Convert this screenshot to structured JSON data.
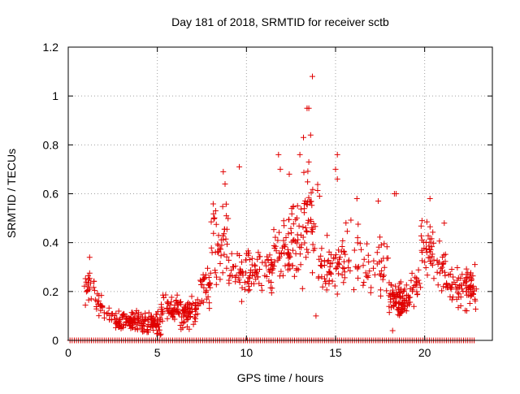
{
  "chart_data": {
    "type": "scatter",
    "title": "Day 181 of 2018, SRMTID for receiver sctb",
    "xlabel": "GPS time / hours",
    "ylabel": "SRMTID / TECUs",
    "xlim": [
      0,
      23.8
    ],
    "ylim": [
      0,
      1.2
    ],
    "x_ticks": [
      0,
      5,
      10,
      15,
      20
    ],
    "y_ticks": [
      0,
      0.2,
      0.4,
      0.6,
      0.8,
      1,
      1.2
    ],
    "x_tick_labels": [
      "0",
      "5",
      "10",
      "15",
      "20"
    ],
    "y_tick_labels": [
      "0",
      "0.2",
      "0.4",
      "0.6",
      "0.8",
      "1",
      "1.2"
    ],
    "grid": true,
    "marker": "+",
    "series": [
      {
        "name": "SRMTID",
        "color": "#e00000",
        "zero_baseline": {
          "y": 0,
          "x_start": 0.1,
          "x_end": 22.9,
          "step": 0.12
        },
        "segments": [
          {
            "x_start": 0.9,
            "x_end": 1.5,
            "count": 22,
            "y_center": 0.22,
            "y_spread": 0.06
          },
          {
            "x_start": 1.5,
            "x_end": 2.0,
            "count": 16,
            "y_center": 0.15,
            "y_spread": 0.04
          },
          {
            "x_start": 2.0,
            "x_end": 2.6,
            "count": 12,
            "y_center": 0.1,
            "y_spread": 0.03
          },
          {
            "x_start": 2.6,
            "x_end": 4.0,
            "count": 85,
            "y_center": 0.08,
            "y_spread": 0.04
          },
          {
            "x_start": 4.0,
            "x_end": 5.2,
            "count": 75,
            "y_center": 0.07,
            "y_spread": 0.04
          },
          {
            "x_start": 5.2,
            "x_end": 6.2,
            "count": 55,
            "y_center": 0.13,
            "y_spread": 0.05
          },
          {
            "x_start": 6.2,
            "x_end": 7.4,
            "count": 65,
            "y_center": 0.11,
            "y_spread": 0.05
          },
          {
            "x_start": 7.4,
            "x_end": 8.0,
            "count": 30,
            "y_center": 0.22,
            "y_spread": 0.08
          },
          {
            "x_start": 8.0,
            "x_end": 9.0,
            "count": 45,
            "y_center": 0.42,
            "y_spread": 0.14
          },
          {
            "x_start": 9.0,
            "x_end": 10.5,
            "count": 60,
            "y_center": 0.28,
            "y_spread": 0.1
          },
          {
            "x_start": 10.5,
            "x_end": 11.5,
            "count": 40,
            "y_center": 0.3,
            "y_spread": 0.1
          },
          {
            "x_start": 11.5,
            "x_end": 12.5,
            "count": 45,
            "y_center": 0.38,
            "y_spread": 0.12
          },
          {
            "x_start": 12.5,
            "x_end": 13.2,
            "count": 35,
            "y_center": 0.4,
            "y_spread": 0.14
          },
          {
            "x_start": 13.2,
            "x_end": 14.0,
            "count": 40,
            "y_center": 0.48,
            "y_spread": 0.16
          },
          {
            "x_start": 14.0,
            "x_end": 15.2,
            "count": 45,
            "y_center": 0.3,
            "y_spread": 0.1
          },
          {
            "x_start": 15.2,
            "x_end": 16.5,
            "count": 35,
            "y_center": 0.35,
            "y_spread": 0.12
          },
          {
            "x_start": 16.5,
            "x_end": 18.0,
            "count": 40,
            "y_center": 0.3,
            "y_spread": 0.1
          },
          {
            "x_start": 18.0,
            "x_end": 19.2,
            "count": 90,
            "y_center": 0.17,
            "y_spread": 0.06
          },
          {
            "x_start": 19.2,
            "x_end": 19.8,
            "count": 20,
            "y_center": 0.22,
            "y_spread": 0.06
          },
          {
            "x_start": 19.8,
            "x_end": 20.5,
            "count": 35,
            "y_center": 0.38,
            "y_spread": 0.1
          },
          {
            "x_start": 20.5,
            "x_end": 21.2,
            "count": 25,
            "y_center": 0.3,
            "y_spread": 0.08
          },
          {
            "x_start": 21.2,
            "x_end": 21.8,
            "count": 20,
            "y_center": 0.22,
            "y_spread": 0.07
          },
          {
            "x_start": 21.8,
            "x_end": 22.9,
            "count": 65,
            "y_center": 0.22,
            "y_spread": 0.08
          }
        ],
        "peaks": [
          {
            "x": 1.2,
            "y": 0.34
          },
          {
            "x": 8.7,
            "y": 0.69
          },
          {
            "x": 8.8,
            "y": 0.64
          },
          {
            "x": 9.6,
            "y": 0.71
          },
          {
            "x": 11.8,
            "y": 0.76
          },
          {
            "x": 11.9,
            "y": 0.7
          },
          {
            "x": 12.4,
            "y": 0.68
          },
          {
            "x": 13.0,
            "y": 0.76
          },
          {
            "x": 13.2,
            "y": 0.83
          },
          {
            "x": 13.4,
            "y": 0.95
          },
          {
            "x": 13.5,
            "y": 0.95
          },
          {
            "x": 13.6,
            "y": 0.84
          },
          {
            "x": 13.7,
            "y": 1.08
          },
          {
            "x": 13.5,
            "y": 0.73
          },
          {
            "x": 14.1,
            "y": 0.59
          },
          {
            "x": 15.1,
            "y": 0.76
          },
          {
            "x": 15.1,
            "y": 0.66
          },
          {
            "x": 15.0,
            "y": 0.7
          },
          {
            "x": 16.2,
            "y": 0.58
          },
          {
            "x": 17.4,
            "y": 0.57
          },
          {
            "x": 18.3,
            "y": 0.6
          },
          {
            "x": 18.4,
            "y": 0.6
          },
          {
            "x": 20.3,
            "y": 0.58
          },
          {
            "x": 21.1,
            "y": 0.48
          },
          {
            "x": 13.9,
            "y": 0.1
          },
          {
            "x": 18.2,
            "y": 0.04
          }
        ]
      }
    ]
  }
}
